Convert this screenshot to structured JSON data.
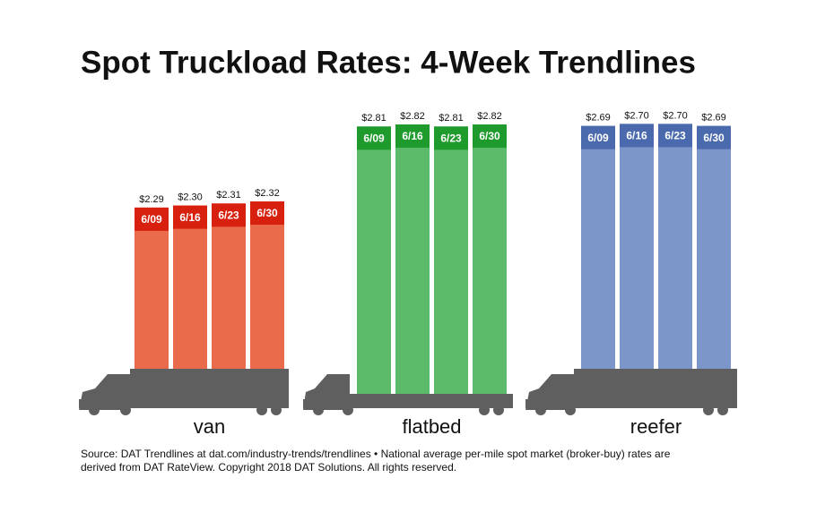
{
  "chart_data": {
    "type": "bar",
    "title": "Spot Truckload Rates: 4-Week Trendlines",
    "ylim": [
      1.5,
      3.0
    ],
    "groups": [
      {
        "name": "van",
        "color": "#ea6a4c",
        "header_color": "#d8200f",
        "categories": [
          "6/09",
          "6/16",
          "6/23",
          "6/30"
        ],
        "values": [
          2.29,
          2.3,
          2.31,
          2.32
        ],
        "value_labels": [
          "$2.29",
          "$2.30",
          "$2.31",
          "$2.32"
        ]
      },
      {
        "name": "flatbed",
        "color": "#5bbb6b",
        "header_color": "#1f9a2c",
        "categories": [
          "6/09",
          "6/16",
          "6/23",
          "6/30"
        ],
        "values": [
          2.81,
          2.82,
          2.81,
          2.82
        ],
        "value_labels": [
          "$2.81",
          "$2.82",
          "$2.81",
          "$2.82"
        ]
      },
      {
        "name": "reefer",
        "color": "#7c96c9",
        "header_color": "#4a6aad",
        "categories": [
          "6/09",
          "6/16",
          "6/23",
          "6/30"
        ],
        "values": [
          2.69,
          2.7,
          2.7,
          2.69
        ],
        "value_labels": [
          "$2.69",
          "$2.70",
          "$2.70",
          "$2.69"
        ]
      }
    ],
    "source": [
      "Source: DAT Trendlines at dat.com/industry-trends/trendlines • National average per-mile spot market (broker-buy) rates are",
      "derived from DAT RateView. Copyright 2018 DAT Solutions. All rights reserved."
    ]
  }
}
